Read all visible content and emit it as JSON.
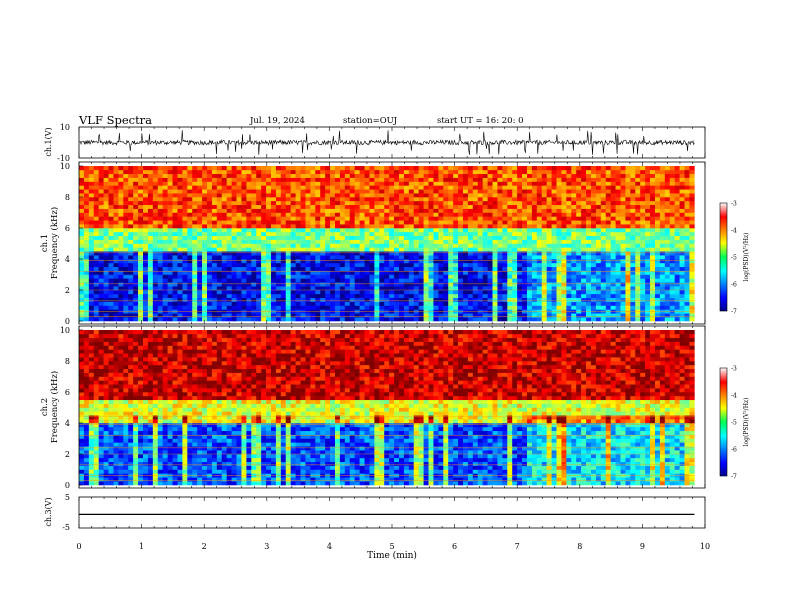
{
  "header": {
    "title": "VLF Spectra",
    "date": "Jul. 19, 2024",
    "station": "station=OUJ",
    "start": "start UT = 16: 20: 0"
  },
  "chart_data": [
    {
      "type": "line",
      "id": "ch1-waveform",
      "ylabel": "ch.1(V)",
      "ylim": [
        -10,
        10
      ],
      "yticks": [
        "10",
        "-10"
      ],
      "x_range": [
        0,
        9.83
      ],
      "baseline": 0,
      "noise_amplitude_v": 1.5,
      "spike_amplitude_v": 8,
      "color": "#000000"
    },
    {
      "type": "heatmap",
      "id": "ch1-spectrogram",
      "ylabel_line1": "ch.1",
      "ylabel_line2": "Frequency (kHz)",
      "ylim": [
        0,
        10
      ],
      "yticks": [
        "0",
        "2",
        "4",
        "6",
        "8",
        "10"
      ],
      "x_range": [
        0,
        9.83
      ],
      "colorbar": {
        "label": "log(PSD)(V²/Hz)",
        "range": [
          -7,
          -3
        ],
        "ticks": [
          "-3",
          "-4",
          "-5",
          "-6",
          "-7"
        ]
      },
      "description_levels": [
        {
          "freq_khz": [
            0,
            4.5
          ],
          "log_psd": -6.5
        },
        {
          "freq_khz": [
            4.5,
            6
          ],
          "log_psd": -5.0
        },
        {
          "freq_khz": [
            6,
            10
          ],
          "log_psd": -3.8
        }
      ]
    },
    {
      "type": "heatmap",
      "id": "ch2-spectrogram",
      "ylabel_line1": "ch.2",
      "ylabel_line2": "Frequency (kHz)",
      "ylim": [
        0,
        10
      ],
      "yticks": [
        "0",
        "2",
        "4",
        "6",
        "8",
        "10"
      ],
      "x_range": [
        0,
        9.83
      ],
      "colorbar": {
        "label": "log(PSD)(V²/Hz)",
        "range": [
          -7,
          -3
        ],
        "ticks": [
          "-3",
          "-4",
          "-5",
          "-6",
          "-7"
        ]
      },
      "description_levels": [
        {
          "freq_khz": [
            0,
            4.0
          ],
          "log_psd": -6.2
        },
        {
          "freq_khz": [
            4.0,
            5.5
          ],
          "log_psd": -4.6
        },
        {
          "freq_khz": [
            5.5,
            10
          ],
          "log_psd": -3.3
        }
      ]
    },
    {
      "type": "line",
      "id": "ch3-waveform",
      "ylabel": "ch.3(V)",
      "ylim": [
        -5,
        5
      ],
      "yticks": [
        "5",
        "-5"
      ],
      "x": [
        0,
        9.83
      ],
      "y": [
        -0.6,
        -0.6
      ],
      "color": "#000000"
    }
  ],
  "xaxis": {
    "label": "Time (min)",
    "range": [
      0,
      10
    ],
    "ticks": [
      "0",
      "1",
      "2",
      "3",
      "4",
      "5",
      "6",
      "7",
      "8",
      "9",
      "10"
    ]
  }
}
